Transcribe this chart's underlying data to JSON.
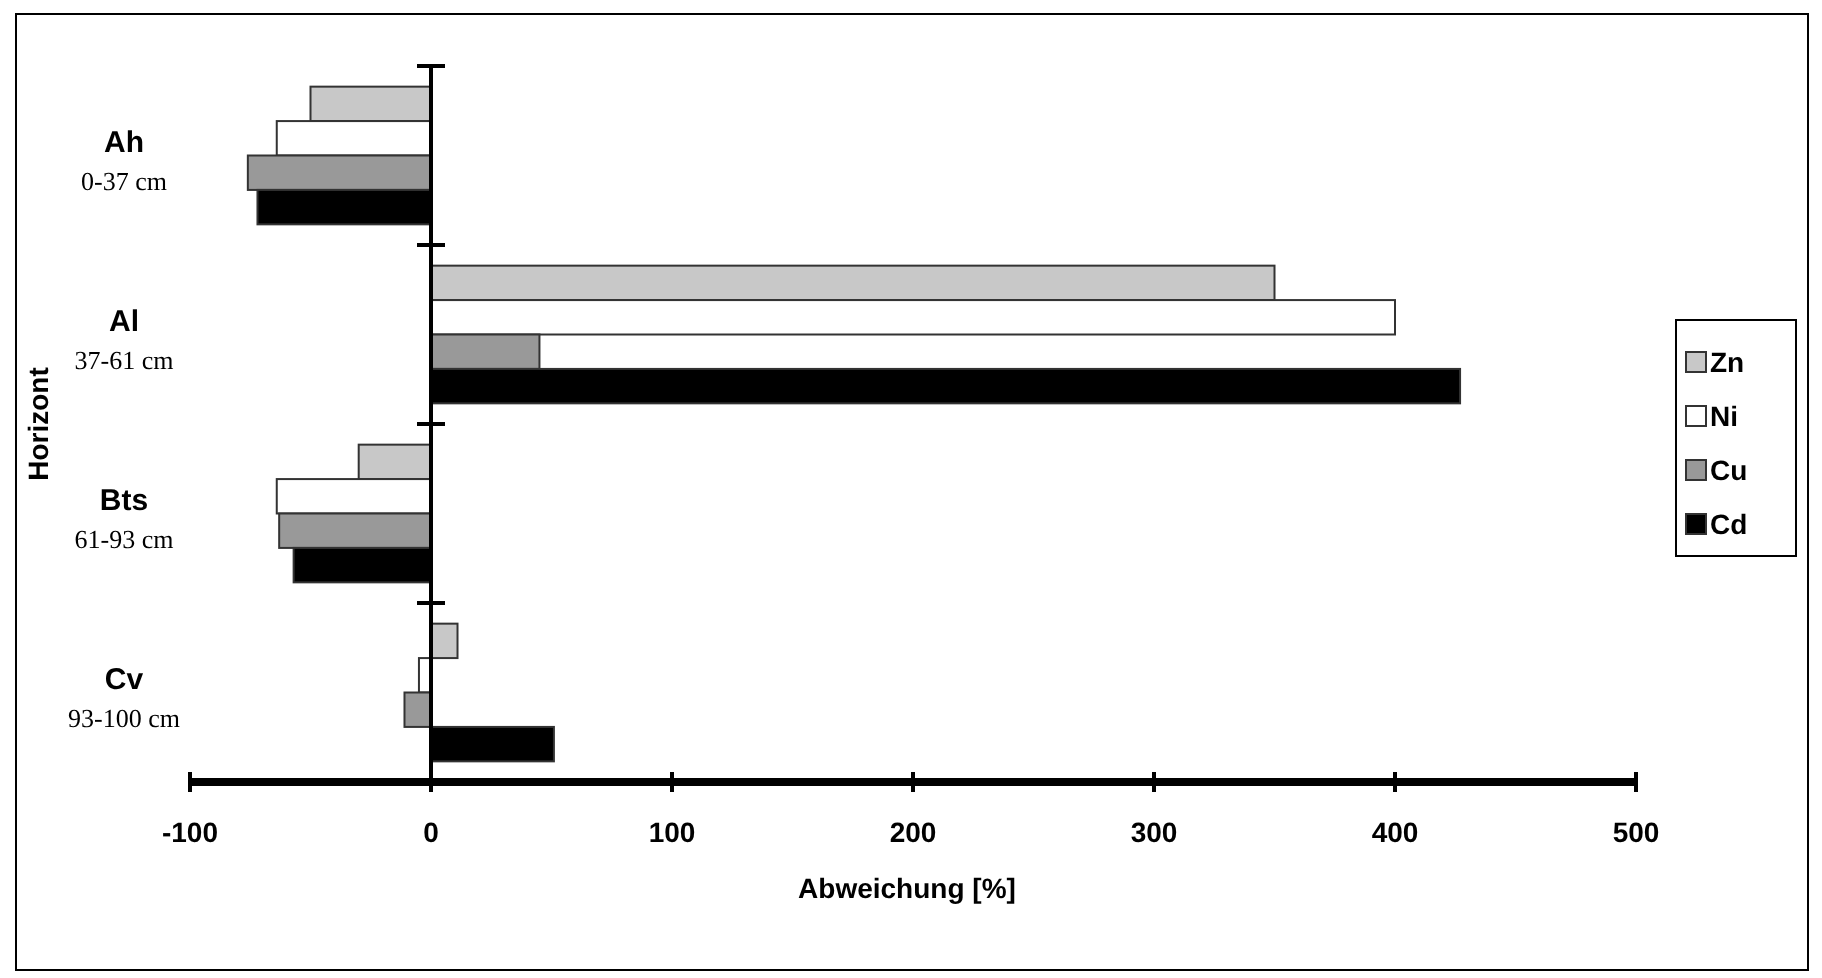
{
  "chart_data": {
    "type": "bar",
    "orientation": "horizontal",
    "xlabel": "Abweichung [%]",
    "ylabel": "Horizont",
    "categories": [
      "Ah\n0-37 cm",
      "Al\n37-61 cm",
      "Bts\n61-93 cm",
      "Cv\n93-100 cm"
    ],
    "series": [
      {
        "name": "Zn",
        "color": "#c8c8c8",
        "values": [
          -50,
          350,
          -30,
          11
        ]
      },
      {
        "name": "Ni",
        "color": "#ffffff",
        "values": [
          -64,
          400,
          -64,
          -5
        ]
      },
      {
        "name": "Cu",
        "color": "#999999",
        "values": [
          -76,
          45,
          -63,
          -11
        ]
      },
      {
        "name": "Cd",
        "color": "#000000",
        "values": [
          -72,
          427,
          -57,
          51
        ]
      }
    ],
    "xlim": [
      -100,
      500
    ],
    "xticks": [
      -100,
      0,
      100,
      200,
      300,
      400,
      500
    ],
    "legend": "right"
  }
}
